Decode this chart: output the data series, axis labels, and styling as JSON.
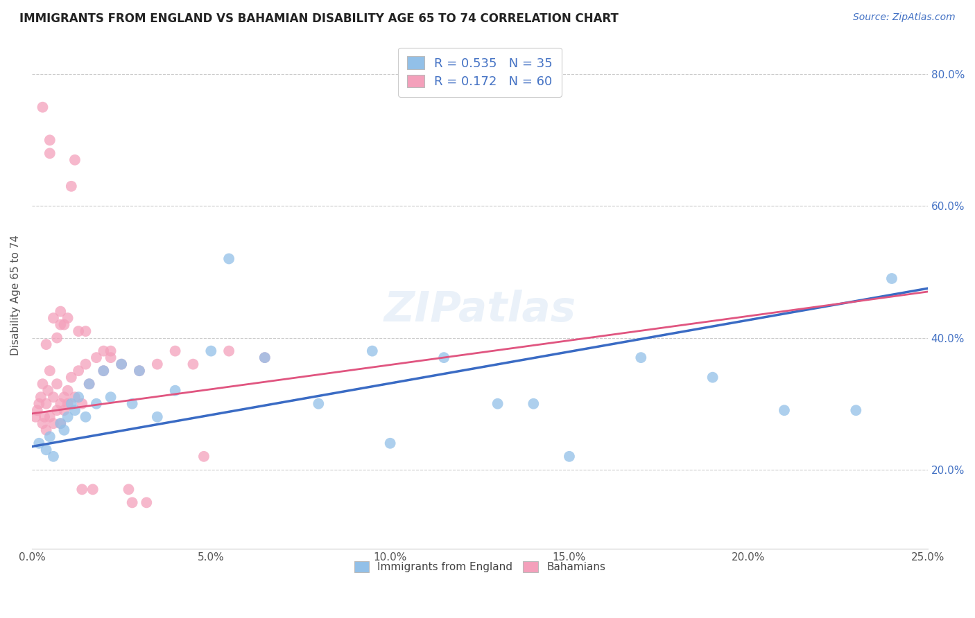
{
  "title": "IMMIGRANTS FROM ENGLAND VS BAHAMIAN DISABILITY AGE 65 TO 74 CORRELATION CHART",
  "source": "Source: ZipAtlas.com",
  "ylabel": "Disability Age 65 to 74",
  "xlim": [
    0.0,
    25.0
  ],
  "ylim": [
    8.0,
    85.0
  ],
  "y_ticks": [
    20.0,
    40.0,
    60.0,
    80.0
  ],
  "x_ticks": [
    0.0,
    5.0,
    10.0,
    15.0,
    20.0,
    25.0
  ],
  "legend_r1": "R = 0.535",
  "legend_n1": "N = 35",
  "legend_r2": "R = 0.172",
  "legend_n2": "N = 60",
  "legend_label1": "Immigrants from England",
  "legend_label2": "Bahamians",
  "color_england": "#92c0e8",
  "color_bahamian": "#f4a0bb",
  "color_england_line": "#3a6bc4",
  "color_bahamian_line": "#e05580",
  "england_x": [
    0.2,
    0.4,
    0.5,
    0.6,
    0.8,
    0.9,
    1.0,
    1.1,
    1.2,
    1.3,
    1.5,
    1.6,
    1.8,
    2.0,
    2.2,
    2.5,
    2.8,
    3.0,
    3.5,
    4.0,
    5.0,
    5.5,
    6.5,
    8.0,
    9.5,
    10.0,
    11.5,
    13.0,
    14.0,
    15.0,
    17.0,
    19.0,
    21.0,
    23.0,
    24.0
  ],
  "england_y": [
    24,
    23,
    25,
    22,
    27,
    26,
    28,
    30,
    29,
    31,
    28,
    33,
    30,
    35,
    31,
    36,
    30,
    35,
    28,
    32,
    38,
    52,
    37,
    30,
    38,
    24,
    37,
    30,
    30,
    22,
    37,
    34,
    29,
    29,
    49
  ],
  "england_line_x0": 0.0,
  "england_line_y0": 23.5,
  "england_line_x1": 25.0,
  "england_line_y1": 47.5,
  "bahamian_x": [
    0.1,
    0.15,
    0.2,
    0.25,
    0.3,
    0.3,
    0.35,
    0.4,
    0.4,
    0.45,
    0.5,
    0.5,
    0.6,
    0.6,
    0.7,
    0.7,
    0.8,
    0.8,
    0.9,
    0.9,
    1.0,
    1.0,
    1.1,
    1.2,
    1.3,
    1.4,
    1.5,
    1.6,
    1.8,
    2.0,
    2.2,
    2.5,
    3.0,
    3.5,
    4.0,
    4.5,
    5.5,
    6.5,
    0.5,
    0.8,
    1.0,
    1.5,
    2.0,
    1.2,
    0.6,
    0.7,
    0.4,
    1.1,
    0.9,
    2.8,
    3.2,
    4.8,
    0.3,
    1.3,
    2.2,
    2.7,
    0.5,
    1.7,
    0.8,
    1.4
  ],
  "bahamian_y": [
    28,
    29,
    30,
    31,
    27,
    33,
    28,
    30,
    26,
    32,
    28,
    35,
    31,
    27,
    29,
    33,
    30,
    27,
    31,
    29,
    30,
    32,
    34,
    31,
    35,
    30,
    36,
    33,
    37,
    35,
    37,
    36,
    35,
    36,
    38,
    36,
    38,
    37,
    70,
    44,
    43,
    41,
    38,
    67,
    43,
    40,
    39,
    63,
    42,
    15,
    15,
    22,
    75,
    41,
    38,
    17,
    68,
    17,
    42,
    17
  ],
  "bahamian_line_x0": 0.0,
  "bahamian_line_y0": 28.5,
  "bahamian_line_x1": 25.0,
  "bahamian_line_y1": 47.0
}
